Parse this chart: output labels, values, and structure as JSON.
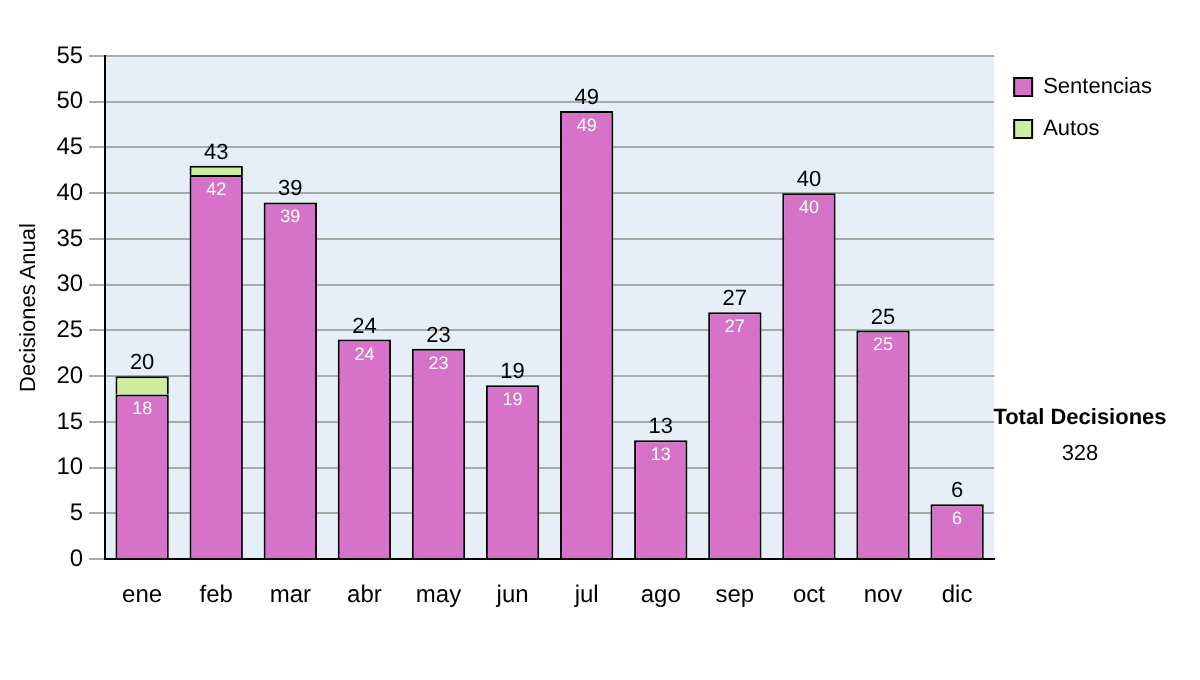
{
  "chart_data": {
    "type": "bar",
    "stacked": true,
    "ylabel": "Decisiones Anual",
    "categories": [
      "ene",
      "feb",
      "mar",
      "abr",
      "may",
      "jun",
      "jul",
      "ago",
      "sep",
      "oct",
      "nov",
      "dic"
    ],
    "series": [
      {
        "name": "Sentencias",
        "color": "#d673c8",
        "values": [
          18,
          42,
          39,
          24,
          23,
          19,
          49,
          13,
          27,
          40,
          25,
          6
        ],
        "value_labels": [
          "18",
          "42",
          "39",
          "24",
          "23",
          "19",
          "49",
          "13",
          "27",
          "40",
          "25",
          "6"
        ]
      },
      {
        "name": "Autos",
        "color": "#cdeea0",
        "values": [
          2,
          1,
          null,
          null,
          null,
          null,
          null,
          null,
          null,
          null,
          null,
          null
        ]
      }
    ],
    "totals": [
      "20",
      "43",
      "39",
      "24",
      "23",
      "19",
      "49",
      "13",
      "27",
      "40",
      "25",
      "6"
    ],
    "ylim": [
      0,
      55
    ],
    "yticks": [
      0,
      5,
      10,
      15,
      20,
      25,
      30,
      35,
      40,
      45,
      50,
      55
    ],
    "grid": "y",
    "legend": "right",
    "annotations": [
      "Total Decisiones",
      "328"
    ]
  }
}
